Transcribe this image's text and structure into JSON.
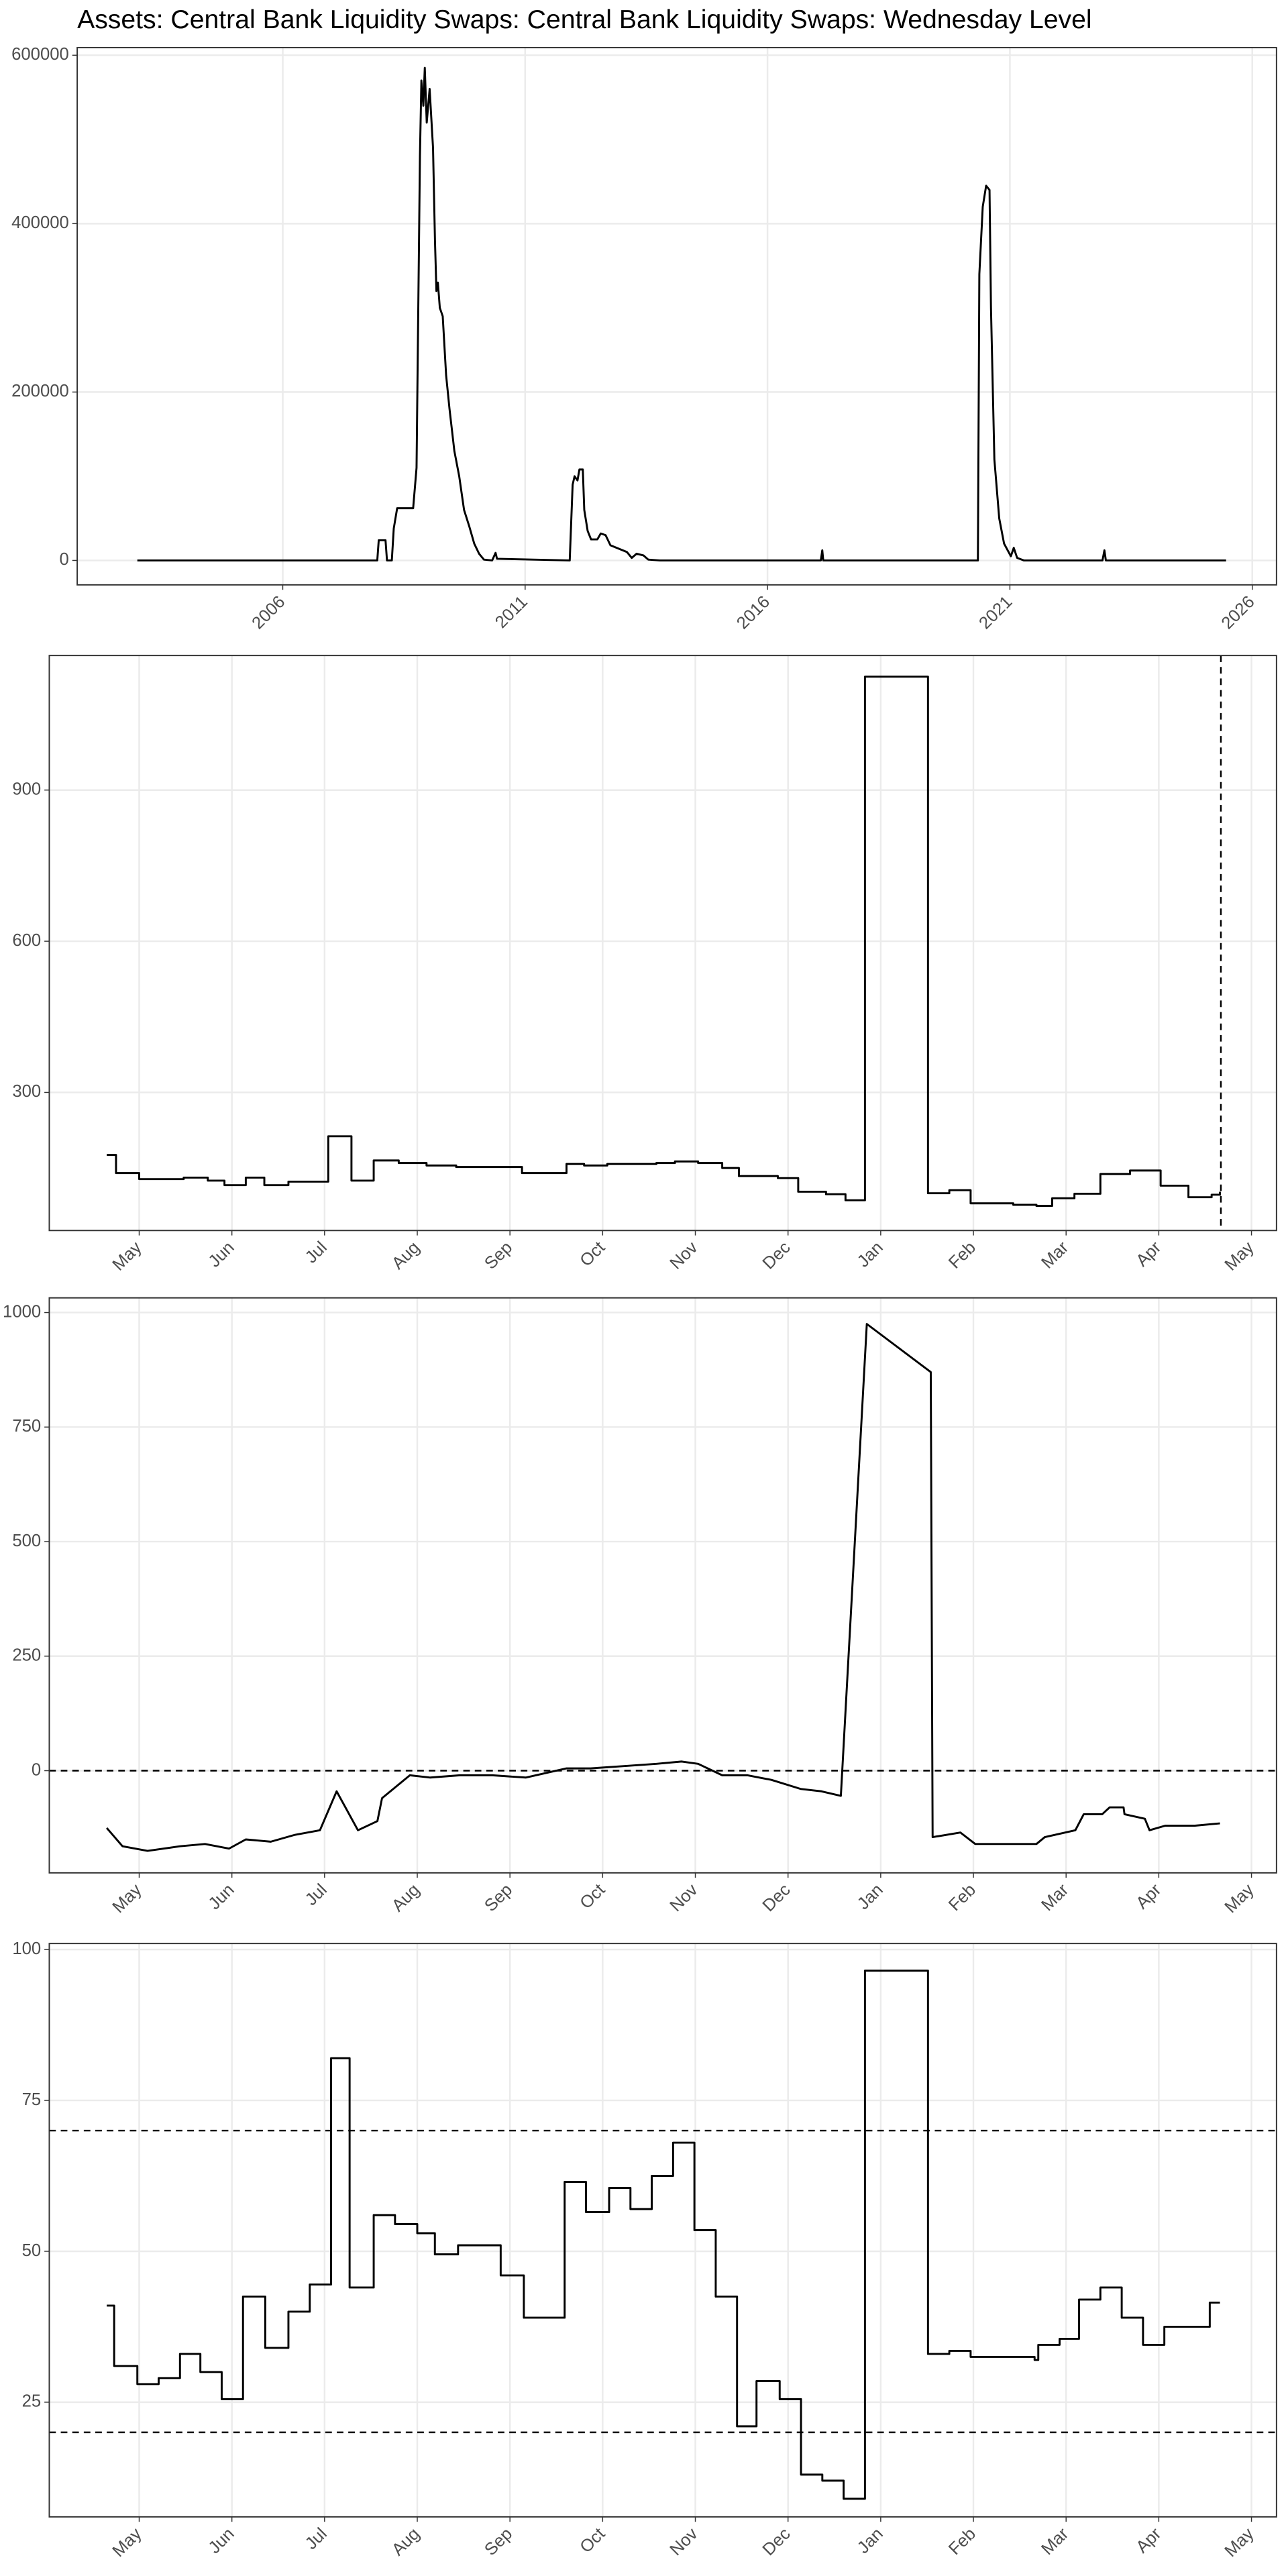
{
  "chart_data": [
    {
      "type": "line",
      "title": "Assets: Central Bank Liquidity Swaps: Central Bank Liquidity Swaps: Wednesday Level",
      "color": "#000000",
      "step": false,
      "grid": true,
      "xlim": [
        2001.76,
        2026.5
      ],
      "xticks": [
        2006,
        2011,
        2016,
        2021,
        2026
      ],
      "ylim": [
        -29000,
        609000
      ],
      "yticks": [
        0,
        200000,
        400000,
        600000
      ],
      "x": [
        2003.0,
        2007.95,
        2007.98,
        2008.12,
        2008.15,
        2008.25,
        2008.29,
        2008.36,
        2008.69,
        2008.76,
        2008.83,
        2008.86,
        2008.9,
        2008.93,
        2008.97,
        2009.03,
        2009.1,
        2009.14,
        2009.17,
        2009.2,
        2009.24,
        2009.3,
        2009.37,
        2009.44,
        2009.54,
        2009.64,
        2009.74,
        2009.85,
        2009.95,
        2010.05,
        2010.15,
        2010.32,
        2010.39,
        2010.42,
        2011.92,
        2011.98,
        2012.02,
        2012.08,
        2012.12,
        2012.19,
        2012.22,
        2012.29,
        2012.36,
        2012.49,
        2012.56,
        2012.66,
        2012.76,
        2012.93,
        2013.1,
        2013.2,
        2013.3,
        2013.44,
        2013.54,
        2013.78,
        2017.1,
        2017.13,
        2017.15,
        2020.34,
        2020.37,
        2020.44,
        2020.51,
        2020.58,
        2020.61,
        2020.68,
        2020.78,
        2020.88,
        2021.02,
        2021.08,
        2021.15,
        2021.29,
        2022.91,
        2022.95,
        2022.98,
        2025.46
      ],
      "values": [
        0,
        0,
        24000,
        24000,
        0,
        0,
        38000,
        62000,
        62000,
        110000,
        480000,
        570000,
        540000,
        585000,
        520000,
        560000,
        490000,
        380000,
        320000,
        330000,
        300000,
        290000,
        220000,
        180000,
        130000,
        100000,
        60000,
        40000,
        20000,
        8000,
        1000,
        0,
        9000,
        2000,
        0,
        90000,
        100000,
        95000,
        108000,
        108000,
        60000,
        35000,
        25000,
        25000,
        32000,
        30000,
        18000,
        14000,
        10000,
        3000,
        8000,
        6000,
        1000,
        0,
        0,
        12000,
        0,
        0,
        340000,
        420000,
        445000,
        440000,
        300000,
        120000,
        50000,
        20000,
        5000,
        15000,
        3000,
        0,
        0,
        12000,
        0,
        0
      ]
    },
    {
      "type": "line",
      "color": "#000000",
      "step": true,
      "grid": true,
      "xlim": [
        -0.97,
        12.27
      ],
      "xticks": [
        {
          "value": 0,
          "label": "May"
        },
        {
          "value": 1,
          "label": "Jun"
        },
        {
          "value": 2,
          "label": "Jul"
        },
        {
          "value": 3,
          "label": "Aug"
        },
        {
          "value": 4,
          "label": "Sep"
        },
        {
          "value": 5,
          "label": "Oct"
        },
        {
          "value": 6,
          "label": "Nov"
        },
        {
          "value": 7,
          "label": "Dec"
        },
        {
          "value": 8,
          "label": "Jan"
        },
        {
          "value": 9,
          "label": "Feb"
        },
        {
          "value": 10,
          "label": "Mar"
        },
        {
          "value": 11,
          "label": "Apr"
        },
        {
          "value": 12,
          "label": "May"
        }
      ],
      "ylim": [
        26,
        1167
      ],
      "yticks": [
        300,
        600,
        900
      ],
      "vlines": [
        11.67
      ],
      "x": [
        -0.35,
        -0.25,
        0,
        0.48,
        0.74,
        0.92,
        1.15,
        1.35,
        1.61,
        2.04,
        2.29,
        2.53,
        2.8,
        3.1,
        3.42,
        3.81,
        4.13,
        4.61,
        4.8,
        5.05,
        5.58,
        5.78,
        6.03,
        6.29,
        6.47,
        6.89,
        7.11,
        7.41,
        7.62,
        7.83,
        8.51,
        8.74,
        8.97,
        9.43,
        9.68,
        9.85,
        10.09,
        10.37,
        10.69,
        11.02,
        11.32,
        11.57,
        11.66
      ],
      "values": [
        176,
        140,
        128,
        131,
        125,
        116,
        131,
        116,
        123,
        213,
        125,
        165,
        160,
        155,
        152,
        152,
        140,
        158,
        155,
        158,
        160,
        163,
        160,
        150,
        134,
        130,
        103,
        98,
        86,
        1125,
        100,
        106,
        80,
        77,
        75,
        90,
        99,
        138,
        145,
        115,
        92,
        97,
        103
      ]
    },
    {
      "type": "line",
      "color": "#000000",
      "step": false,
      "grid": true,
      "xlim": [
        -0.97,
        12.27
      ],
      "xticks": [
        {
          "value": 0,
          "label": "May"
        },
        {
          "value": 1,
          "label": "Jun"
        },
        {
          "value": 2,
          "label": "Jul"
        },
        {
          "value": 3,
          "label": "Aug"
        },
        {
          "value": 4,
          "label": "Sep"
        },
        {
          "value": 5,
          "label": "Oct"
        },
        {
          "value": 6,
          "label": "Nov"
        },
        {
          "value": 7,
          "label": "Dec"
        },
        {
          "value": 8,
          "label": "Jan"
        },
        {
          "value": 9,
          "label": "Feb"
        },
        {
          "value": 10,
          "label": "Mar"
        },
        {
          "value": 11,
          "label": "Apr"
        },
        {
          "value": 12,
          "label": "May"
        }
      ],
      "ylim": [
        -223,
        1032
      ],
      "yticks": [
        0,
        250,
        500,
        750,
        1000
      ],
      "hlines": [
        0
      ],
      "x": [
        -0.35,
        -0.18,
        0.09,
        0.44,
        0.71,
        0.97,
        1.15,
        1.42,
        1.68,
        1.95,
        2.13,
        2.36,
        2.57,
        2.62,
        2.92,
        3.14,
        3.46,
        3.81,
        4.17,
        4.61,
        4.87,
        5.23,
        5.58,
        5.85,
        6.03,
        6.29,
        6.56,
        6.82,
        7.14,
        7.36,
        7.57,
        7.85,
        8.54,
        8.56,
        8.86,
        9.02,
        9.48,
        9.68,
        9.77,
        10.1,
        10.19,
        10.39,
        10.47,
        10.62,
        10.63,
        10.85,
        10.9,
        11.07,
        11.39,
        11.66
      ],
      "values": [
        -125,
        -165,
        -175,
        -165,
        -160,
        -170,
        -150,
        -155,
        -140,
        -130,
        -45,
        -130,
        -110,
        -60,
        -10,
        -15,
        -10,
        -10,
        -15,
        5,
        5,
        10,
        15,
        20,
        15,
        -10,
        -10,
        -20,
        -40,
        -45,
        -55,
        975,
        870,
        -145,
        -135,
        -160,
        -160,
        -160,
        -145,
        -130,
        -95,
        -95,
        -80,
        -80,
        -95,
        -105,
        -130,
        -120,
        -120,
        -115
      ]
    },
    {
      "type": "line",
      "color": "#000000",
      "step": true,
      "grid": true,
      "xlim": [
        -0.97,
        12.27
      ],
      "xticks": [
        {
          "value": 0,
          "label": "May"
        },
        {
          "value": 1,
          "label": "Jun"
        },
        {
          "value": 2,
          "label": "Jul"
        },
        {
          "value": 3,
          "label": "Aug"
        },
        {
          "value": 4,
          "label": "Sep"
        },
        {
          "value": 5,
          "label": "Oct"
        },
        {
          "value": 6,
          "label": "Nov"
        },
        {
          "value": 7,
          "label": "Dec"
        },
        {
          "value": 8,
          "label": "Jan"
        },
        {
          "value": 9,
          "label": "Feb"
        },
        {
          "value": 10,
          "label": "Mar"
        },
        {
          "value": 11,
          "label": "Apr"
        },
        {
          "value": 12,
          "label": "May"
        }
      ],
      "ylim": [
        6,
        101
      ],
      "yticks": [
        25,
        50,
        75,
        100
      ],
      "hlines": [
        20,
        70
      ],
      "x": [
        -0.35,
        -0.27,
        -0.02,
        0.21,
        0.44,
        0.66,
        0.89,
        1.12,
        1.36,
        1.61,
        1.84,
        2.07,
        2.27,
        2.53,
        2.76,
        3.0,
        3.19,
        3.44,
        3.9,
        4.15,
        4.59,
        4.82,
        5.07,
        5.3,
        5.53,
        5.76,
        5.99,
        6.22,
        6.45,
        6.66,
        6.91,
        7.14,
        7.37,
        7.6,
        7.83,
        8.51,
        8.74,
        8.97,
        9.66,
        9.7,
        9.93,
        10.14,
        10.37,
        10.6,
        10.83,
        11.06,
        11.29,
        11.55,
        11.66
      ],
      "values": [
        41,
        31,
        28,
        29,
        33,
        30,
        25.5,
        42.5,
        34,
        40,
        44.5,
        82,
        44,
        56,
        54.5,
        53,
        49.5,
        51,
        46,
        39,
        61.5,
        56.5,
        60.5,
        57,
        62.5,
        68,
        53.5,
        42.5,
        21,
        28.5,
        25.5,
        13,
        12,
        9,
        96.5,
        33,
        33.5,
        32.5,
        32,
        34.5,
        35.5,
        42,
        44,
        39,
        34.5,
        37.5,
        37.5,
        41.5,
        41.5
      ]
    }
  ]
}
